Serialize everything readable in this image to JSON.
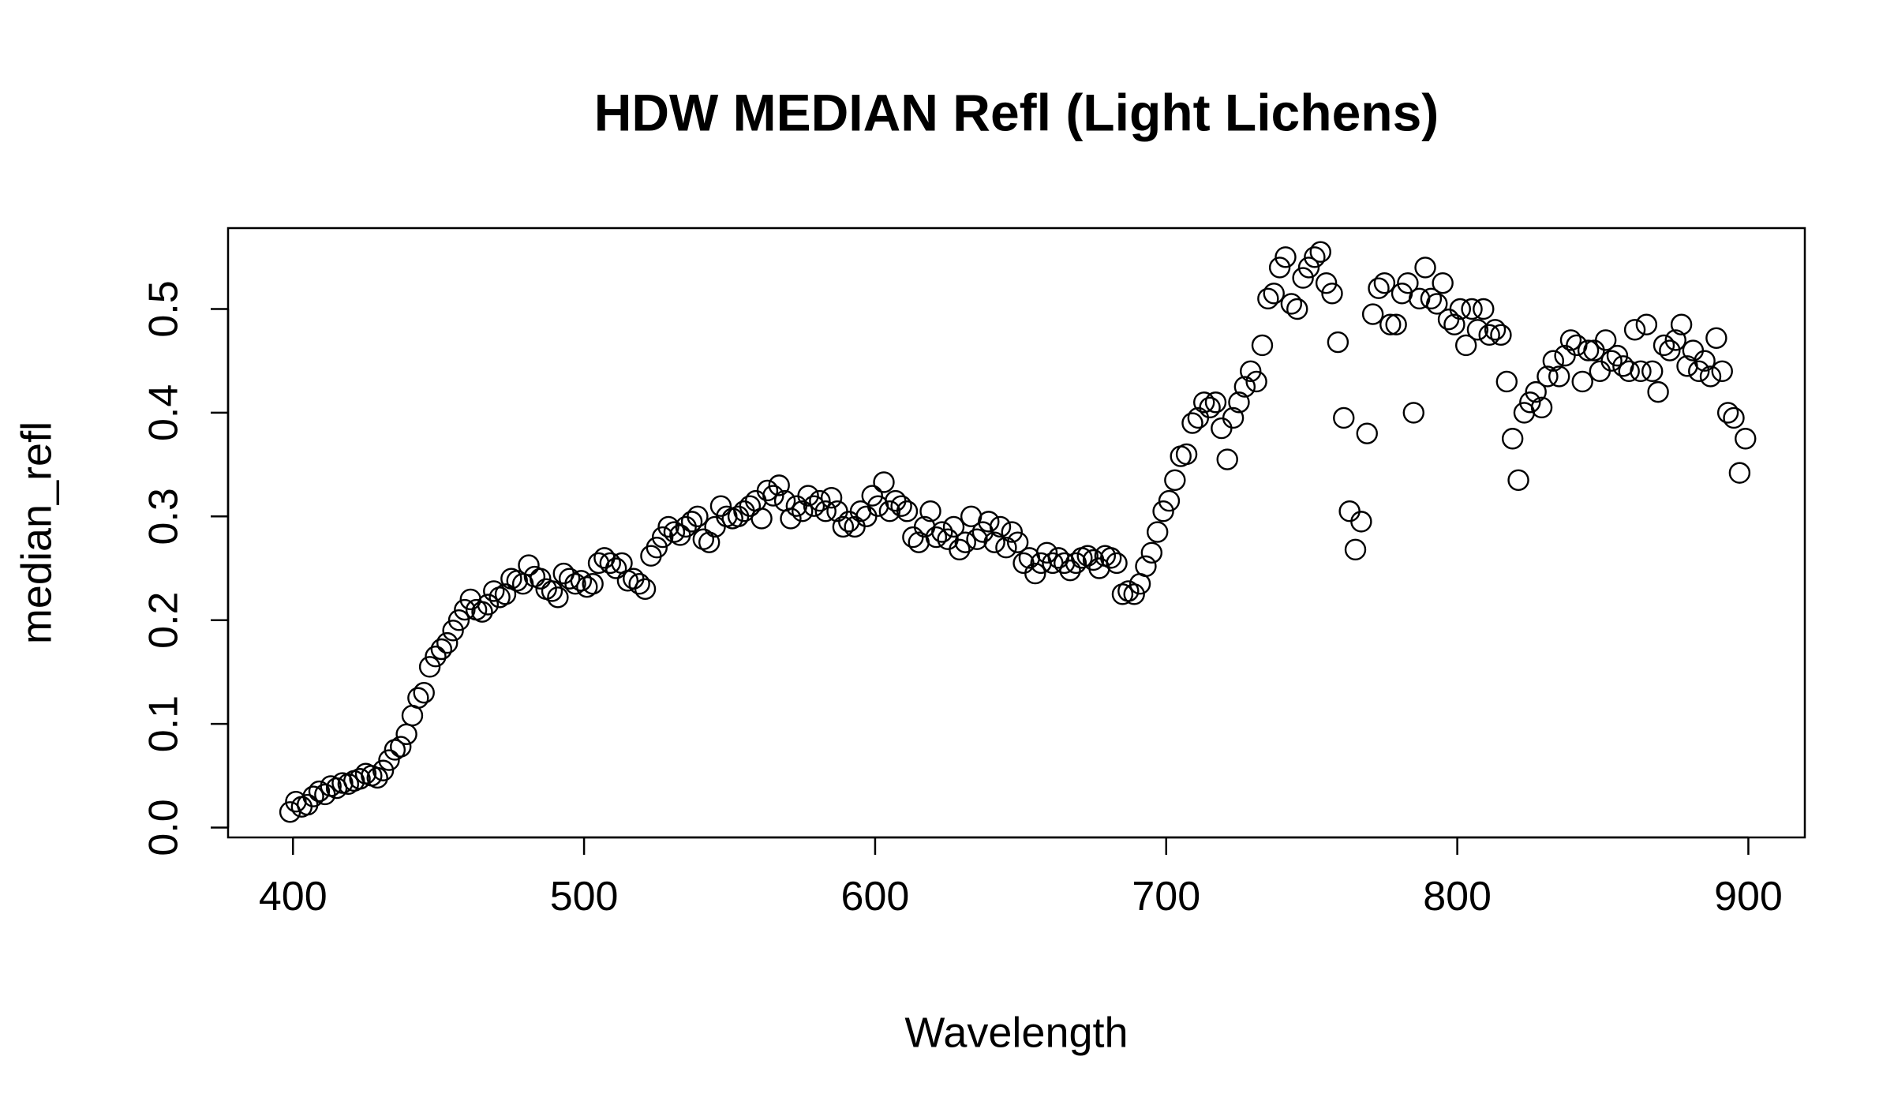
{
  "chart_data": {
    "type": "scatter",
    "title": "HDW MEDIAN Refl (Light Lichens)",
    "x_label": "Wavelength",
    "y_label": "median_refl",
    "xlim": [
      377.7,
      919.4
    ],
    "ylim": [
      -0.0095,
      0.578
    ],
    "xticks": [
      400,
      500,
      600,
      700,
      800,
      900
    ],
    "yticks": [
      {
        "value": 0,
        "label": "0.0"
      },
      0.1,
      0.2,
      0.3,
      0.4,
      0.5
    ],
    "color": "#000000",
    "x": [
      399,
      401,
      403,
      405,
      407,
      409,
      411,
      413,
      415,
      417,
      419,
      421,
      423,
      425,
      427,
      429,
      431,
      433,
      435,
      437,
      439,
      441,
      443,
      445,
      447,
      449,
      451,
      453,
      455,
      457,
      459,
      461,
      463,
      465,
      467,
      469,
      471,
      473,
      475,
      477,
      479,
      481,
      483,
      485,
      487,
      489,
      491,
      493,
      495,
      497,
      499,
      501,
      503,
      505,
      507,
      509,
      511,
      513,
      515,
      517,
      519,
      521,
      523,
      525,
      527,
      529,
      531,
      533,
      535,
      537,
      539,
      541,
      543,
      545,
      547,
      549,
      551,
      553,
      555,
      557,
      559,
      561,
      563,
      565,
      567,
      569,
      571,
      573,
      575,
      577,
      579,
      581,
      583,
      585,
      587,
      589,
      591,
      593,
      595,
      597,
      599,
      601,
      603,
      605,
      607,
      609,
      611,
      613,
      615,
      617,
      619,
      621,
      623,
      625,
      627,
      629,
      631,
      633,
      635,
      637,
      639,
      641,
      643,
      645,
      647,
      649,
      651,
      653,
      655,
      657,
      659,
      661,
      663,
      665,
      667,
      669,
      671,
      673,
      675,
      677,
      679,
      681,
      683,
      685,
      687,
      689,
      691,
      693,
      695,
      697,
      699,
      701,
      703,
      705,
      707,
      709,
      711,
      713,
      715,
      717,
      719,
      721,
      723,
      725,
      727,
      729,
      731,
      733,
      735,
      737,
      739,
      741,
      743,
      745,
      747,
      749,
      751,
      753,
      755,
      757,
      759,
      761,
      763,
      765,
      767,
      769,
      771,
      773,
      775,
      777,
      779,
      781,
      783,
      785,
      787,
      789,
      791,
      793,
      795,
      797,
      799,
      801,
      803,
      805,
      807,
      809,
      811,
      813,
      815,
      817,
      819,
      821,
      823,
      825,
      827,
      829,
      831,
      833,
      835,
      837,
      839,
      841,
      843,
      845,
      847,
      849,
      851,
      853,
      855,
      857,
      859,
      861,
      863,
      865,
      867,
      869,
      871,
      873,
      875,
      877,
      879,
      881,
      883,
      885,
      887,
      889,
      891,
      893,
      895,
      897,
      899
    ],
    "values": [
      0.015,
      0.025,
      0.02,
      0.022,
      0.03,
      0.035,
      0.032,
      0.04,
      0.038,
      0.043,
      0.042,
      0.045,
      0.047,
      0.052,
      0.05,
      0.048,
      0.055,
      0.065,
      0.075,
      0.078,
      0.09,
      0.108,
      0.125,
      0.13,
      0.155,
      0.165,
      0.172,
      0.178,
      0.19,
      0.2,
      0.21,
      0.22,
      0.21,
      0.208,
      0.215,
      0.228,
      0.222,
      0.225,
      0.24,
      0.238,
      0.235,
      0.253,
      0.242,
      0.24,
      0.23,
      0.228,
      0.222,
      0.245,
      0.24,
      0.235,
      0.238,
      0.232,
      0.235,
      0.255,
      0.26,
      0.255,
      0.25,
      0.255,
      0.238,
      0.24,
      0.235,
      0.23,
      0.262,
      0.27,
      0.28,
      0.29,
      0.285,
      0.282,
      0.29,
      0.295,
      0.3,
      0.278,
      0.275,
      0.29,
      0.31,
      0.3,
      0.298,
      0.3,
      0.305,
      0.31,
      0.315,
      0.298,
      0.325,
      0.32,
      0.33,
      0.315,
      0.298,
      0.31,
      0.305,
      0.32,
      0.31,
      0.315,
      0.305,
      0.318,
      0.305,
      0.29,
      0.295,
      0.29,
      0.305,
      0.3,
      0.32,
      0.31,
      0.333,
      0.305,
      0.315,
      0.31,
      0.305,
      0.28,
      0.275,
      0.29,
      0.305,
      0.28,
      0.285,
      0.278,
      0.29,
      0.268,
      0.275,
      0.3,
      0.278,
      0.285,
      0.295,
      0.275,
      0.29,
      0.27,
      0.285,
      0.275,
      0.255,
      0.26,
      0.245,
      0.255,
      0.265,
      0.255,
      0.26,
      0.255,
      0.248,
      0.255,
      0.26,
      0.262,
      0.258,
      0.25,
      0.262,
      0.26,
      0.255,
      0.225,
      0.228,
      0.225,
      0.235,
      0.252,
      0.265,
      0.285,
      0.305,
      0.315,
      0.335,
      0.358,
      0.36,
      0.39,
      0.395,
      0.41,
      0.405,
      0.41,
      0.385,
      0.355,
      0.395,
      0.41,
      0.425,
      0.44,
      0.43,
      0.465,
      0.51,
      0.515,
      0.54,
      0.55,
      0.505,
      0.5,
      0.53,
      0.54,
      0.55,
      0.555,
      0.525,
      0.515,
      0.468,
      0.395,
      0.305,
      0.268,
      0.295,
      0.38,
      0.495,
      0.52,
      0.525,
      0.485,
      0.485,
      0.515,
      0.525,
      0.4,
      0.51,
      0.54,
      0.51,
      0.505,
      0.525,
      0.49,
      0.485,
      0.5,
      0.465,
      0.5,
      0.48,
      0.5,
      0.475,
      0.48,
      0.475,
      0.43,
      0.375,
      0.335,
      0.4,
      0.41,
      0.42,
      0.405,
      0.435,
      0.45,
      0.435,
      0.455,
      0.47,
      0.465,
      0.43,
      0.46,
      0.46,
      0.44,
      0.47,
      0.45,
      0.455,
      0.445,
      0.44,
      0.48,
      0.44,
      0.485,
      0.44,
      0.42,
      0.465,
      0.46,
      0.47,
      0.485,
      0.445,
      0.46,
      0.44,
      0.45,
      0.435,
      0.472,
      0.44,
      0.4,
      0.395,
      0.342,
      0.375
    ]
  }
}
